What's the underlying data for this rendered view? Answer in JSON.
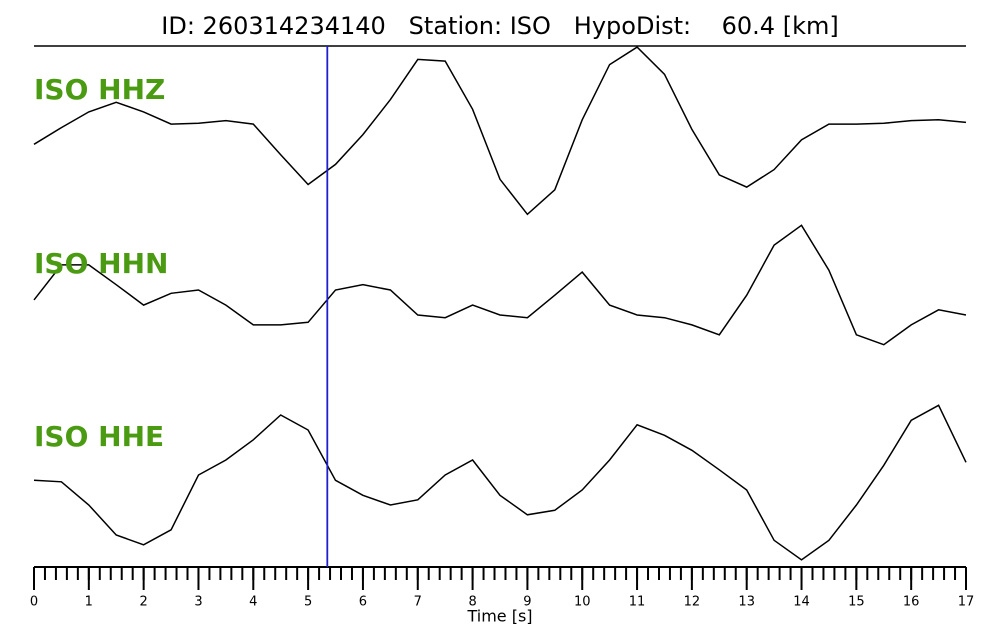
{
  "chart_data": {
    "type": "line",
    "title": "ID: 260314234140   Station: ISO   HypoDist:    60.4 [km]",
    "x_label": "Time [s]",
    "x": [
      0,
      0.5,
      1,
      1.5,
      2,
      2.5,
      3,
      3.5,
      4,
      4.5,
      5,
      5.5,
      6,
      6.5,
      7,
      7.5,
      8,
      8.5,
      9,
      9.5,
      10,
      10.5,
      11,
      11.5,
      12,
      12.5,
      13,
      13.5,
      14,
      14.5,
      15,
      15.5,
      16,
      16.5,
      17
    ],
    "series": [
      {
        "name": "ISO HHZ",
        "color": "#000000",
        "values": [
          -0.14,
          0.05,
          0.23,
          0.34,
          0.23,
          0.09,
          0.1,
          0.13,
          0.09,
          -0.26,
          -0.6,
          -0.37,
          -0.03,
          0.37,
          0.83,
          0.81,
          0.26,
          -0.54,
          -0.94,
          -0.66,
          0.14,
          0.77,
          0.97,
          0.66,
          0.03,
          -0.49,
          -0.63,
          -0.43,
          -0.09,
          0.09,
          0.09,
          0.1,
          0.13,
          0.14,
          0.11
        ]
      },
      {
        "name": "ISO HHN",
        "color": "#000000",
        "values": [
          -0.21,
          0.32,
          0.32,
          0.02,
          -0.29,
          -0.11,
          -0.06,
          -0.29,
          -0.59,
          -0.59,
          -0.55,
          -0.06,
          0.02,
          -0.06,
          -0.44,
          -0.48,
          -0.29,
          -0.44,
          -0.48,
          -0.14,
          0.21,
          -0.29,
          -0.44,
          -0.48,
          -0.59,
          -0.74,
          -0.14,
          0.62,
          0.92,
          0.24,
          -0.74,
          -0.89,
          -0.59,
          -0.36,
          -0.44
        ]
      },
      {
        "name": "ISO HHE",
        "color": "#000000",
        "values": [
          -0.07,
          -0.09,
          -0.4,
          -0.8,
          -0.93,
          -0.73,
          0.0,
          0.2,
          0.47,
          0.8,
          0.6,
          -0.07,
          -0.27,
          -0.4,
          -0.33,
          0.0,
          0.2,
          -0.27,
          -0.53,
          -0.47,
          -0.2,
          0.2,
          0.67,
          0.53,
          0.33,
          0.07,
          -0.2,
          -0.87,
          -1.13,
          -0.87,
          -0.4,
          0.13,
          0.73,
          0.93,
          0.17
        ]
      }
    ],
    "pick_time": 5.35,
    "pick_color": "#1f1fcc",
    "xlim": [
      0,
      17
    ],
    "xticks": [
      0,
      1,
      2,
      3,
      4,
      5,
      6,
      7,
      8,
      9,
      10,
      11,
      12,
      13,
      14,
      15,
      16,
      17
    ],
    "xminor_interval": 0.2,
    "label_color": "#4a9a12"
  }
}
